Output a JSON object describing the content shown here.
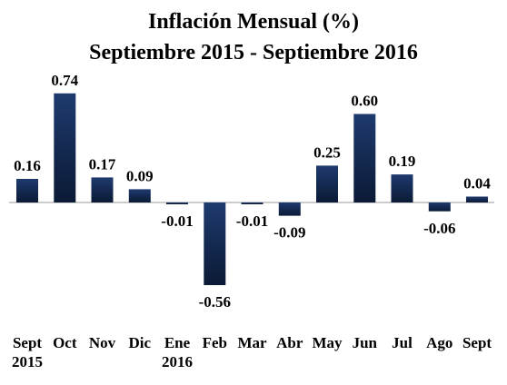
{
  "chart_data": {
    "type": "bar",
    "title": "Inflación Mensual (%)",
    "subtitle": "Septiembre 2015 - Septiembre 2016",
    "categories": [
      {
        "label": "Sept",
        "sub": "2015"
      },
      {
        "label": "Oct",
        "sub": ""
      },
      {
        "label": "Nov",
        "sub": ""
      },
      {
        "label": "Dic",
        "sub": ""
      },
      {
        "label": "Ene",
        "sub": "2016"
      },
      {
        "label": "Feb",
        "sub": ""
      },
      {
        "label": "Mar",
        "sub": ""
      },
      {
        "label": "Abr",
        "sub": ""
      },
      {
        "label": "May",
        "sub": ""
      },
      {
        "label": "Jun",
        "sub": ""
      },
      {
        "label": "Jul",
        "sub": ""
      },
      {
        "label": "Ago",
        "sub": ""
      },
      {
        "label": "Sept",
        "sub": ""
      }
    ],
    "values": [
      0.16,
      0.74,
      0.17,
      0.09,
      -0.01,
      -0.56,
      -0.01,
      -0.09,
      0.25,
      0.6,
      0.19,
      -0.06,
      0.04
    ],
    "data_labels": [
      "0.16",
      "0.74",
      "0.17",
      "0.09",
      "-0.01",
      "-0.56",
      "-0.01",
      "-0.09",
      "0.25",
      "0.60",
      "0.19",
      "-0.06",
      "0.04"
    ],
    "xlabel": "",
    "ylabel": "",
    "ylim": [
      -0.56,
      0.74
    ],
    "grid": false,
    "legend": "none",
    "colors": {
      "bar_top": "#1e3a6e",
      "bar_bottom": "#0b1a35",
      "axis": "#999999",
      "text": "#000000"
    }
  }
}
